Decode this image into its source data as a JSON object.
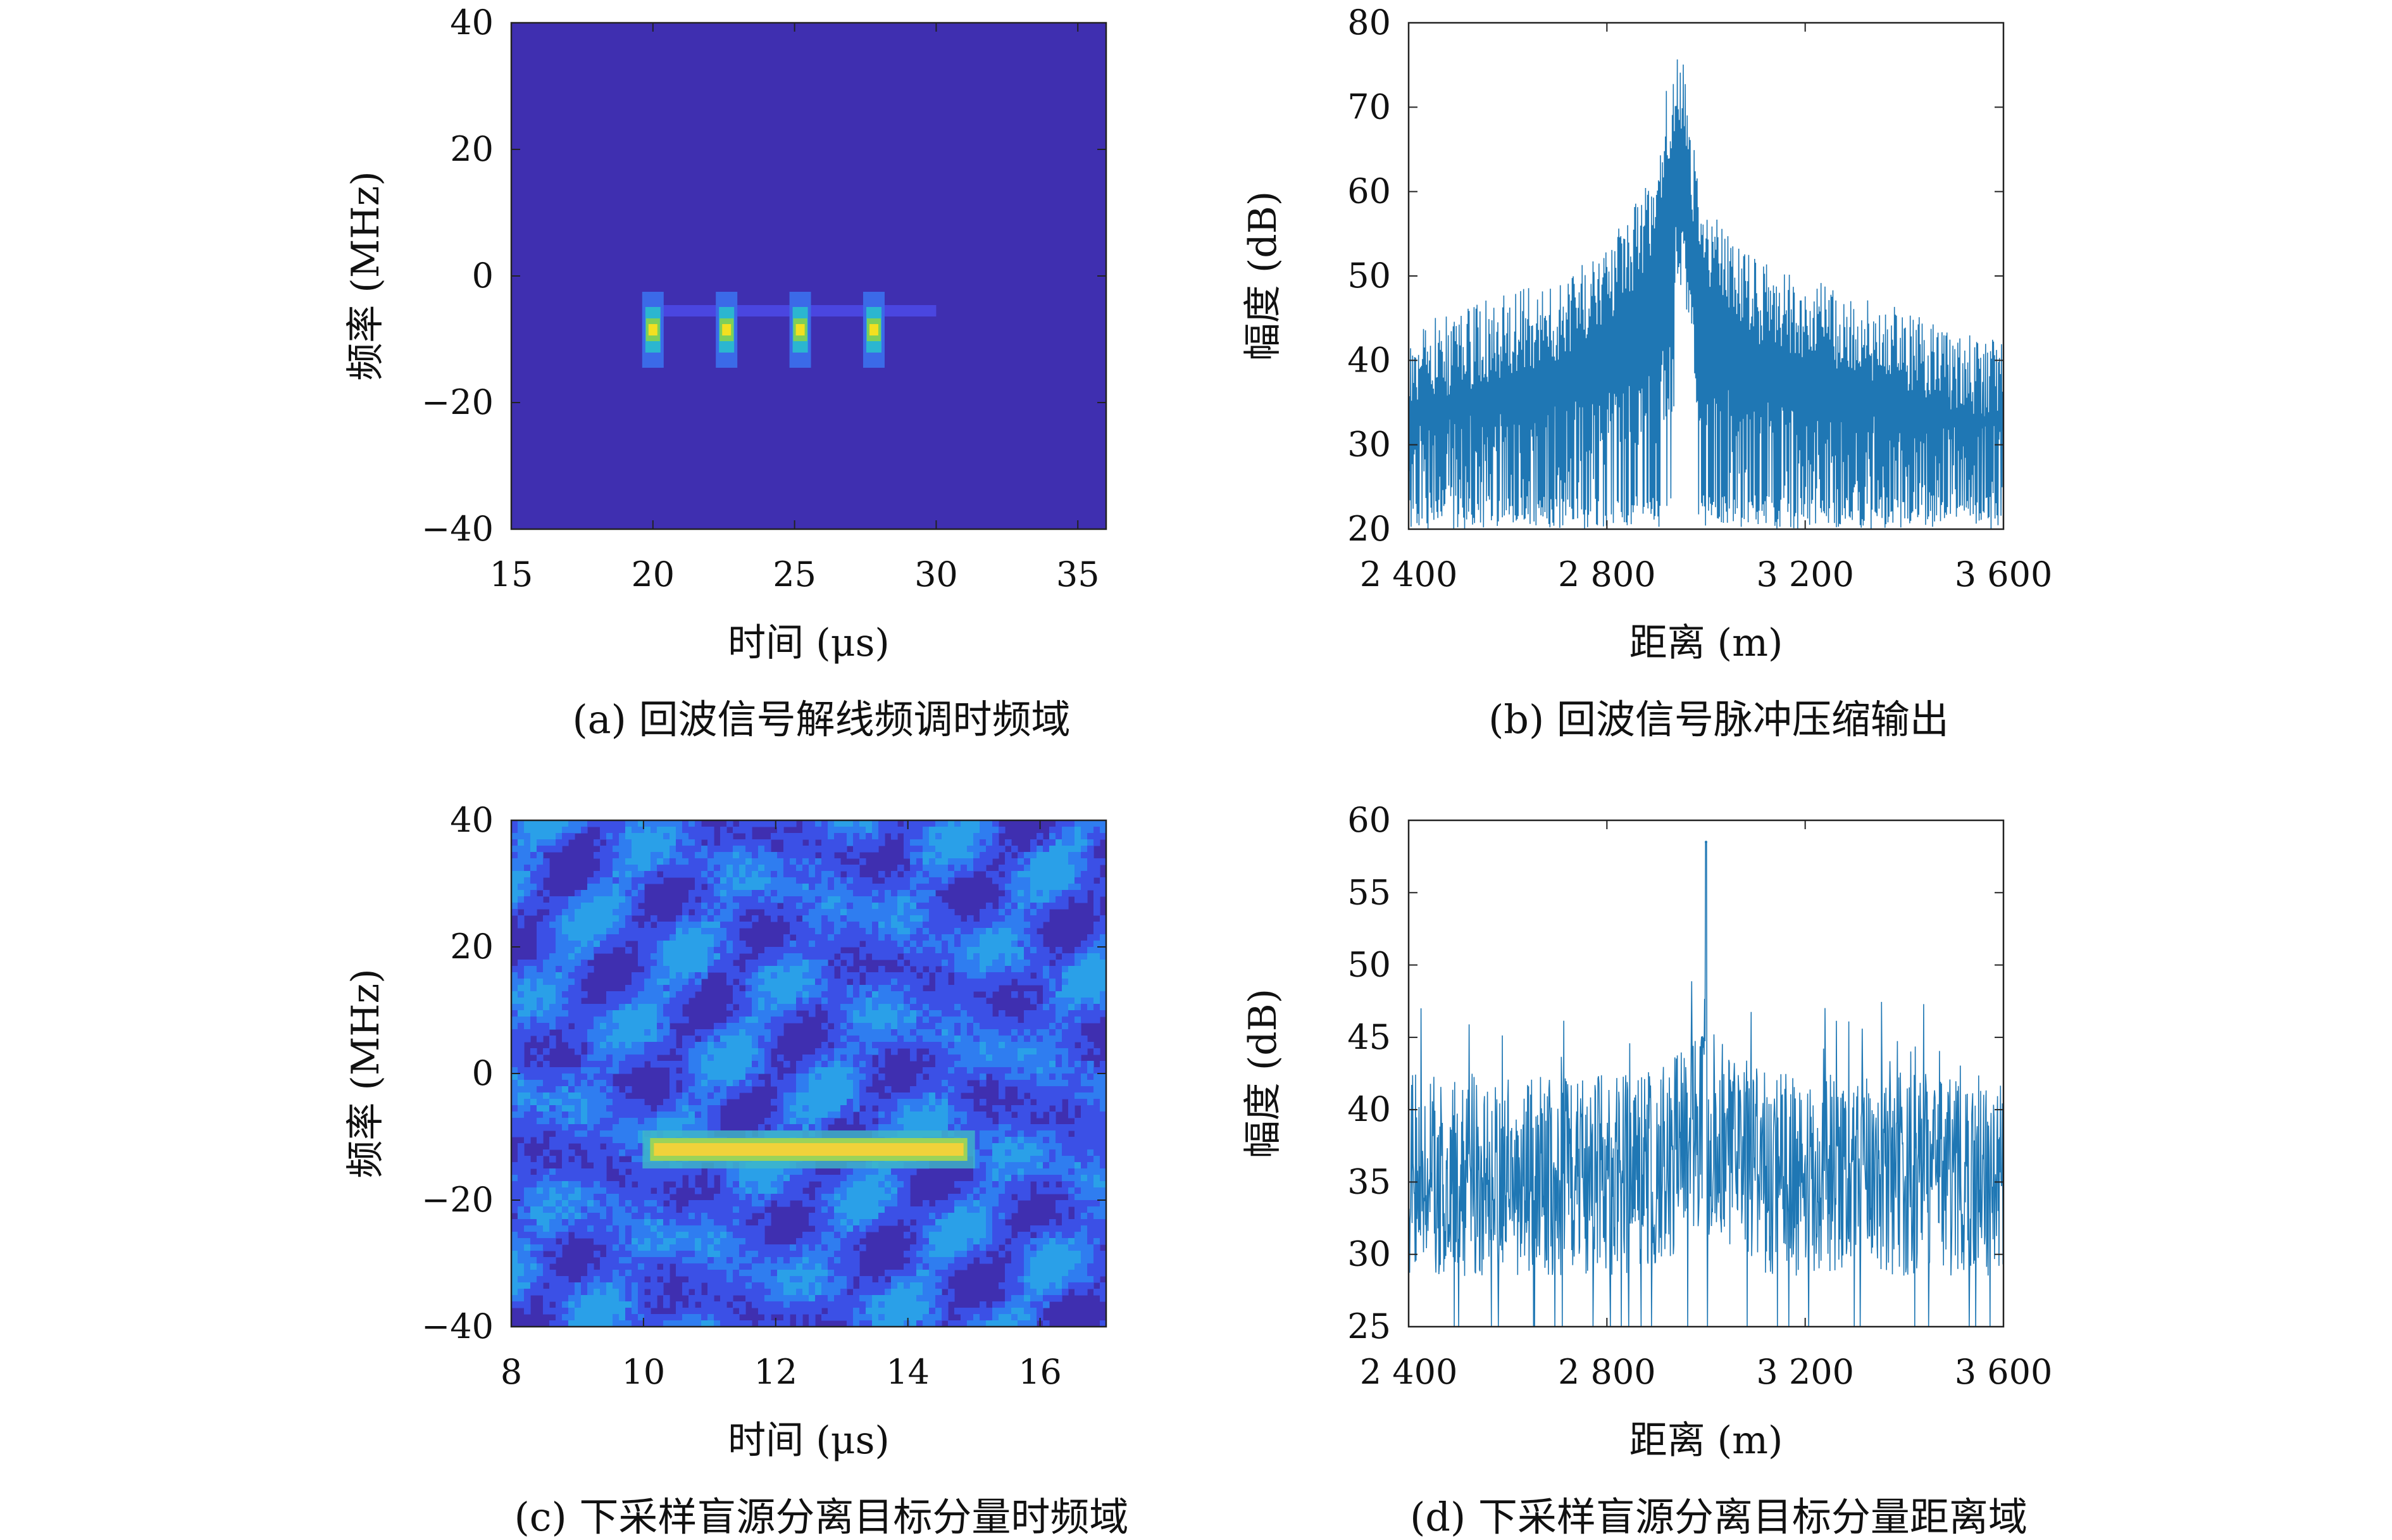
{
  "chart_data": [
    {
      "type": "heatmap",
      "caption": "(a) 回波信号解线频调时频域",
      "xlabel": "时间 (μs)",
      "ylabel": "频率 (MHz)",
      "xlim": [
        15,
        36
      ],
      "ylim": [
        -40,
        40
      ],
      "xticks": [
        "15",
        "20",
        "25",
        "30",
        "35"
      ],
      "xtick_values": [
        15,
        20,
        25,
        30,
        35
      ],
      "yticks": [
        "40",
        "20",
        "0",
        "−20",
        "−40"
      ],
      "ytick_values": [
        40,
        20,
        0,
        -20,
        -40
      ],
      "colors": {
        "background": "#3f2fb0",
        "line": "#4a46e0",
        "hot": "#f2e020"
      },
      "line": {
        "x_start": 19.8,
        "x_end": 30,
        "y": -5.5
      },
      "hotspots": [
        {
          "x": 20.0,
          "y": -8.5
        },
        {
          "x": 22.6,
          "y": -8.5
        },
        {
          "x": 25.2,
          "y": -8.5
        },
        {
          "x": 27.8,
          "y": -8.5
        }
      ]
    },
    {
      "type": "line",
      "caption": "(b) 回波信号脉冲压缩输出",
      "xlabel": "距离 (m)",
      "ylabel": "幅度 (dB)",
      "xlim": [
        2400,
        3600
      ],
      "ylim": [
        20,
        80
      ],
      "xticks": [
        "2 400",
        "2 800",
        "3 200",
        "3 600"
      ],
      "xtick_values": [
        2400,
        2800,
        3200,
        3600
      ],
      "yticks": [
        "80",
        "70",
        "60",
        "50",
        "40",
        "30",
        "20"
      ],
      "ytick_values": [
        80,
        70,
        60,
        50,
        40,
        30,
        20
      ],
      "color": "#1f77b4",
      "x": [
        2400,
        2500,
        2600,
        2700,
        2800,
        2850,
        2900,
        2920,
        2940,
        2950,
        2960,
        2980,
        3000,
        3050,
        3100,
        3200,
        3300,
        3400,
        3500,
        3600
      ],
      "y_upper": [
        45,
        46,
        48,
        50,
        54,
        58,
        63,
        72,
        76,
        77,
        73,
        63,
        58,
        55,
        52,
        50,
        48,
        46,
        44,
        43
      ],
      "y_floor": 20,
      "y_noise_top": 33
    },
    {
      "type": "heatmap",
      "caption": "(c) 下采样盲源分离目标分量时频域",
      "xlabel": "时间 (μs)",
      "ylabel": "频率 (MHz)",
      "xlim": [
        8,
        17
      ],
      "ylim": [
        -40,
        40
      ],
      "xticks": [
        "8",
        "10",
        "12",
        "14",
        "16"
      ],
      "xtick_values": [
        8,
        10,
        12,
        14,
        16
      ],
      "yticks": [
        "40",
        "20",
        "0",
        "−20",
        "−40"
      ],
      "ytick_values": [
        40,
        20,
        0,
        -20,
        -40
      ],
      "colors": {
        "background": "#3f2fb0",
        "noise": [
          "#3a2ca8",
          "#3b50e6",
          "#2f7df0",
          "#2aa0e8"
        ],
        "line": "#f0d23a"
      },
      "line": {
        "x_start": 10.1,
        "x_end": 14.9,
        "y": -12
      }
    },
    {
      "type": "line",
      "caption": "(d) 下采样盲源分离目标分量距离域",
      "xlabel": "距离 (m)",
      "ylabel": "幅度 (dB)",
      "xlim": [
        2400,
        3600
      ],
      "ylim": [
        25,
        60
      ],
      "xticks": [
        "2 400",
        "2 800",
        "3 200",
        "3 600"
      ],
      "xtick_values": [
        2400,
        2800,
        3200,
        3600
      ],
      "yticks": [
        "60",
        "55",
        "50",
        "45",
        "40",
        "35",
        "30",
        "25"
      ],
      "ytick_values": [
        60,
        55,
        50,
        45,
        40,
        35,
        30,
        25
      ],
      "color": "#1f77b4",
      "peak": {
        "x": 3000,
        "y": 58.5
      },
      "noise_center": 35.5,
      "noise_max": 45,
      "noise_min": 25
    }
  ]
}
